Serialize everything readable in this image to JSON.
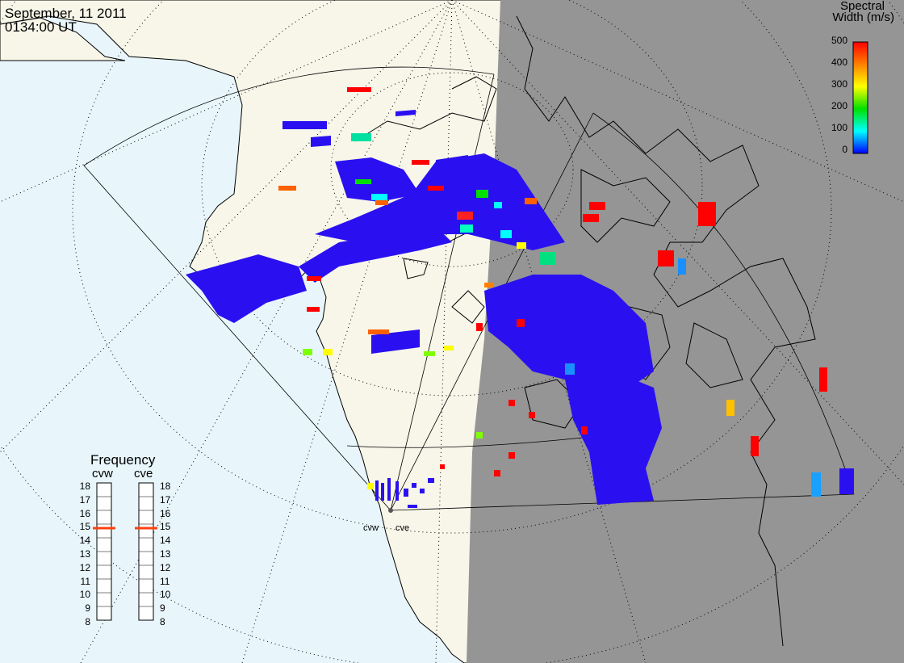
{
  "title": {
    "date": "September, 11 2011",
    "time": "0134:00 UT"
  },
  "colors": {
    "ocean": "#e8f6fc",
    "land_day": "#f7f6e9",
    "night": "#959595",
    "scatter_main": "#2a10f0"
  },
  "legend": {
    "title_line1": "Spectral",
    "title_line2": "Width (m/s)",
    "ticks": [
      "500",
      "400",
      "300",
      "200",
      "100",
      "0"
    ],
    "colorscale": [
      "#ff0000",
      "#ff8000",
      "#ffff00",
      "#00e000",
      "#00ffff",
      "#0000ff"
    ]
  },
  "frequency_panel": {
    "title": "Frequency",
    "radars": [
      {
        "label": "cvw",
        "selected": "15"
      },
      {
        "label": "cve",
        "selected": "15"
      }
    ],
    "scale": [
      "18",
      "17",
      "16",
      "15",
      "14",
      "13",
      "12",
      "11",
      "10",
      "9",
      "8"
    ],
    "marker_color": "#ff4010"
  },
  "radar_sites": [
    {
      "label": "cvw"
    },
    {
      "label": "cve"
    }
  ]
}
